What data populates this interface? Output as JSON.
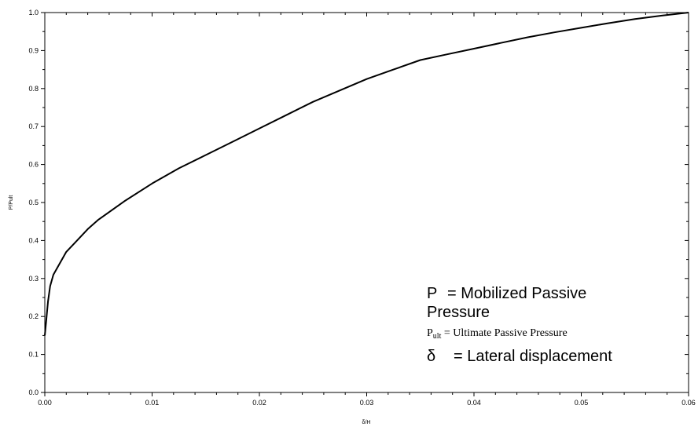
{
  "chart_data": {
    "type": "line",
    "title": "",
    "xlabel": "δ/H",
    "ylabel": "P/Pult",
    "xlim": [
      0.0,
      0.06
    ],
    "ylim": [
      0.0,
      1.0
    ],
    "x_ticks": [
      "0.00",
      "0.01",
      "0.02",
      "0.03",
      "0.04",
      "0.05",
      "0.06"
    ],
    "y_ticks": [
      "0.0",
      "0.1",
      "0.2",
      "0.3",
      "0.4",
      "0.5",
      "0.6",
      "0.7",
      "0.8",
      "0.9",
      "1.0"
    ],
    "grid": false,
    "line_color": "#000000",
    "series": [
      {
        "x": [
          0.0,
          0.0001,
          0.0003,
          0.0005,
          0.0008,
          0.0012,
          0.002,
          0.003,
          0.004,
          0.005,
          0.0075,
          0.01,
          0.0125,
          0.015,
          0.0175,
          0.02,
          0.0225,
          0.025,
          0.0275,
          0.03,
          0.0325,
          0.035,
          0.0375,
          0.04,
          0.0425,
          0.045,
          0.0475,
          0.05,
          0.0525,
          0.055,
          0.0575,
          0.06
        ],
        "y": [
          0.15,
          0.18,
          0.24,
          0.28,
          0.31,
          0.33,
          0.37,
          0.4,
          0.43,
          0.455,
          0.505,
          0.55,
          0.59,
          0.625,
          0.66,
          0.695,
          0.73,
          0.765,
          0.795,
          0.825,
          0.85,
          0.875,
          0.89,
          0.905,
          0.92,
          0.935,
          0.948,
          0.96,
          0.972,
          0.983,
          0.992,
          1.0
        ]
      }
    ]
  },
  "legend": {
    "line1_symbol": "P",
    "line1_text": "= Mobilized Passive",
    "line2_text": "Pressure",
    "line3_symbol": "P",
    "line3_sub": "ult",
    "line3_text": "= Ultimate Passive Pressure",
    "line4_symbol": "δ",
    "line4_text": "= Lateral displacement"
  }
}
